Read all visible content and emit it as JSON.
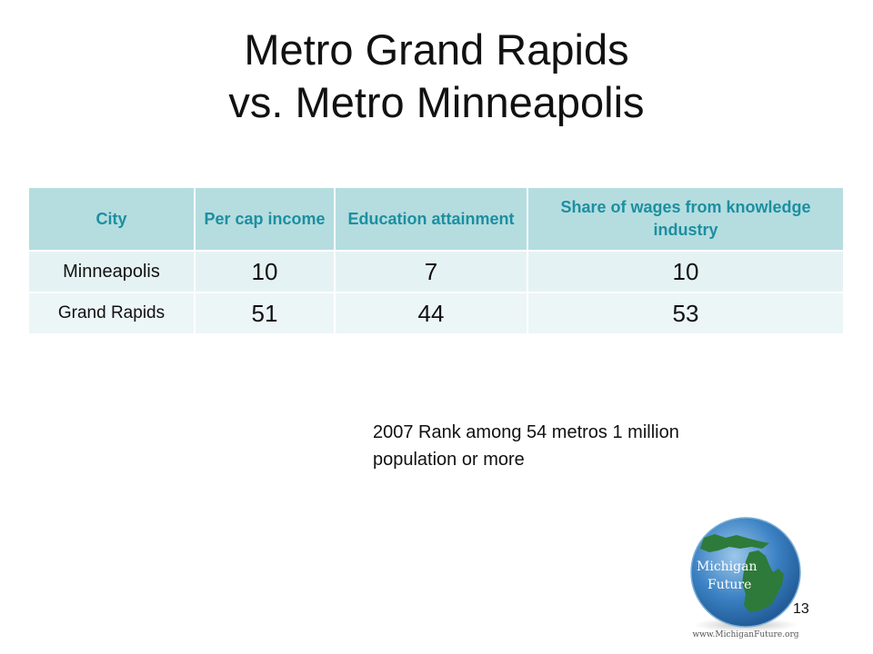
{
  "slide": {
    "title_line1": "Metro Grand Rapids",
    "title_line2": "vs. Metro Minneapolis",
    "page_number": "13"
  },
  "table": {
    "headers": {
      "city": "City",
      "per_cap": "Per cap income",
      "education": "Education attainment",
      "wages": "Share of wages from knowledge industry"
    },
    "rows": [
      {
        "city": "Minneapolis",
        "per_cap": "10",
        "education": "7",
        "wages": "10"
      },
      {
        "city": "Grand Rapids",
        "per_cap": "51",
        "education": "44",
        "wages": "53"
      }
    ]
  },
  "note": "2007 Rank among 54 metros 1 million population or more",
  "logo": {
    "name_line1": "Michigan",
    "name_line2": "Future",
    "url": "www.MichiganFuture.org"
  },
  "colors": {
    "header_bg": "#b5dde0",
    "header_text": "#1c8fa0",
    "row_bg": "#e5f2f3",
    "globe_blue": "#2d73b8",
    "land_green": "#2e7a3a"
  }
}
